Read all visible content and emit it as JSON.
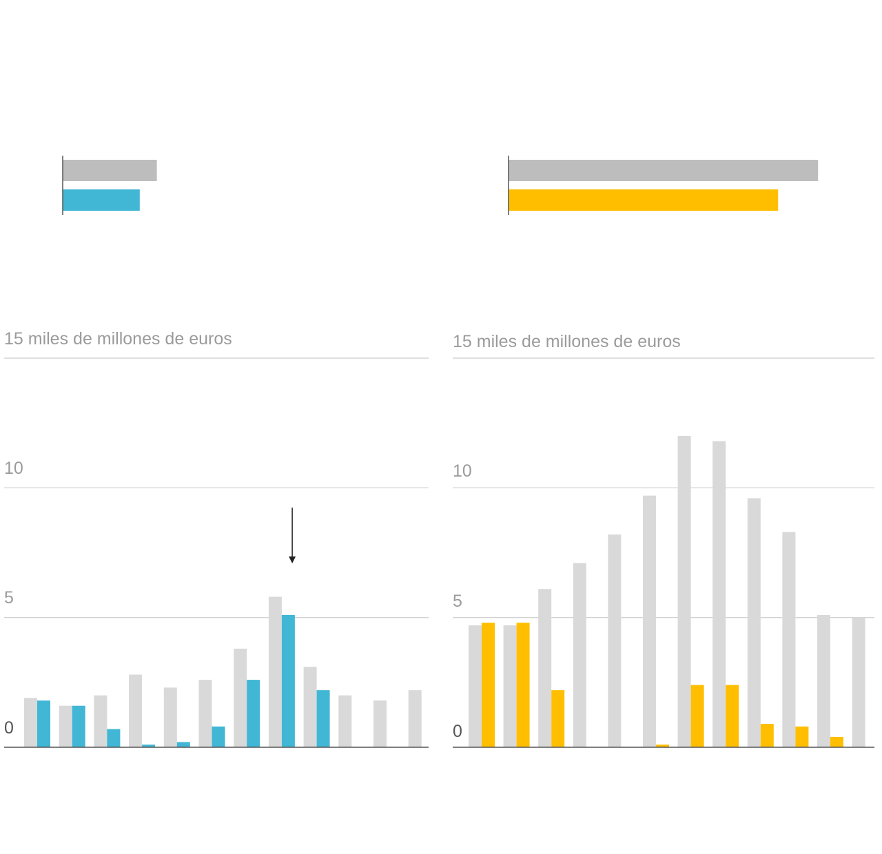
{
  "colors": {
    "previous": "#bdbdbd",
    "previous_light": "#d9d9d9",
    "left_accent": "#41b7d5",
    "right_accent": "#ffbf00",
    "grid": "#cccccc",
    "baseline": "#555555"
  },
  "chart_data": [
    {
      "type": "bar",
      "orientation": "horizontal",
      "series": [
        {
          "values": [
            6.6
          ],
          "color": "#bdbdbd"
        },
        {
          "values": [
            5.4
          ],
          "color": "#41b7d5"
        }
      ],
      "xlim": [
        0,
        30
      ]
    },
    {
      "type": "bar",
      "orientation": "horizontal",
      "series": [
        {
          "values": [
            21.7
          ],
          "color": "#bdbdbd"
        },
        {
          "values": [
            18.9
          ],
          "color": "#ffbf00"
        }
      ],
      "xlim": [
        0,
        30
      ]
    },
    {
      "type": "bar",
      "ylabel": "15 miles de millones de euros",
      "ylim": [
        0,
        15
      ],
      "yticks": [
        "0",
        "5",
        "10"
      ],
      "grid": true,
      "series": [
        {
          "color": "#d9d9d9",
          "values": [
            1.9,
            1.6,
            2.0,
            2.8,
            2.3,
            2.6,
            3.8,
            5.8,
            3.1,
            2.0,
            1.8,
            2.2
          ]
        },
        {
          "color": "#41b7d5",
          "values": [
            1.8,
            1.6,
            0.7,
            0.1,
            0.2,
            0.8,
            2.6,
            5.1,
            2.2,
            0,
            0,
            0
          ]
        }
      ],
      "annotation": {
        "type": "arrow",
        "category_index": 7
      }
    },
    {
      "type": "bar",
      "ylabel": "15 miles de millones de euros",
      "ylim": [
        0,
        15
      ],
      "yticks": [
        "0",
        "5",
        "10"
      ],
      "grid": true,
      "series": [
        {
          "color": "#d9d9d9",
          "values": [
            4.7,
            4.7,
            6.1,
            7.1,
            8.2,
            9.7,
            12.0,
            11.8,
            9.6,
            8.3,
            5.1,
            5.0
          ]
        },
        {
          "color": "#ffbf00",
          "values": [
            4.8,
            4.8,
            2.2,
            0,
            0,
            0.1,
            2.4,
            2.4,
            0.9,
            0.8,
            0.4,
            0
          ]
        }
      ]
    }
  ]
}
